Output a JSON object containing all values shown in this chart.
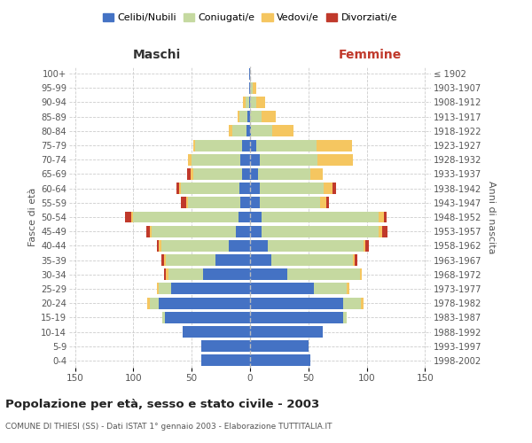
{
  "age_groups": [
    "0-4",
    "5-9",
    "10-14",
    "15-19",
    "20-24",
    "25-29",
    "30-34",
    "35-39",
    "40-44",
    "45-49",
    "50-54",
    "55-59",
    "60-64",
    "65-69",
    "70-74",
    "75-79",
    "80-84",
    "85-89",
    "90-94",
    "95-99",
    "100+"
  ],
  "birth_years": [
    "1998-2002",
    "1993-1997",
    "1988-1992",
    "1983-1987",
    "1978-1982",
    "1973-1977",
    "1968-1972",
    "1963-1967",
    "1958-1962",
    "1953-1957",
    "1948-1952",
    "1943-1947",
    "1938-1942",
    "1933-1937",
    "1928-1932",
    "1923-1927",
    "1918-1922",
    "1913-1917",
    "1908-1912",
    "1903-1907",
    "≤ 1902"
  ],
  "male": {
    "celibi": [
      42,
      42,
      58,
      73,
      78,
      68,
      40,
      30,
      18,
      12,
      10,
      8,
      9,
      7,
      8,
      7,
      3,
      2,
      1,
      1,
      1
    ],
    "coniugati": [
      0,
      0,
      0,
      2,
      8,
      10,
      30,
      42,
      58,
      72,
      90,
      45,
      50,
      42,
      42,
      40,
      12,
      7,
      3,
      0,
      0
    ],
    "vedovi": [
      0,
      0,
      0,
      0,
      2,
      2,
      2,
      2,
      2,
      2,
      2,
      2,
      2,
      2,
      3,
      2,
      3,
      2,
      2,
      0,
      0
    ],
    "divorziati": [
      0,
      0,
      0,
      0,
      0,
      0,
      2,
      2,
      2,
      3,
      5,
      4,
      2,
      3,
      0,
      0,
      0,
      0,
      0,
      0,
      0
    ]
  },
  "female": {
    "nubili": [
      52,
      50,
      62,
      80,
      80,
      55,
      32,
      18,
      15,
      10,
      10,
      8,
      8,
      7,
      8,
      5,
      1,
      0,
      0,
      0,
      0
    ],
    "coniugate": [
      0,
      0,
      0,
      3,
      15,
      28,
      62,
      70,
      82,
      100,
      100,
      52,
      55,
      45,
      50,
      52,
      18,
      10,
      5,
      2,
      0
    ],
    "vedove": [
      0,
      0,
      0,
      0,
      2,
      2,
      2,
      2,
      2,
      3,
      5,
      5,
      8,
      10,
      30,
      30,
      18,
      12,
      8,
      3,
      0
    ],
    "divorziate": [
      0,
      0,
      0,
      0,
      0,
      0,
      0,
      2,
      3,
      5,
      2,
      3,
      3,
      0,
      0,
      0,
      0,
      0,
      0,
      0,
      0
    ]
  },
  "colors": {
    "celibi": "#4472C4",
    "coniugati": "#C5D9A0",
    "vedovi": "#F5C660",
    "divorziati": "#C0392B"
  },
  "title": "Popolazione per età, sesso e stato civile - 2003",
  "subtitle": "COMUNE DI THIESI (SS) - Dati ISTAT 1° gennaio 2003 - Elaborazione TUTTITALIA.IT",
  "label_maschi": "Maschi",
  "label_femmine": "Femmine",
  "ylabel_left": "Fasce di età",
  "ylabel_right": "Anni di nascita",
  "legend_labels": [
    "Celibi/Nubili",
    "Coniugati/e",
    "Vedovi/e",
    "Divorziati/e"
  ],
  "xlim": 155,
  "xticks": [
    -150,
    -100,
    -50,
    0,
    50,
    100,
    150
  ],
  "xtick_labels": [
    "150",
    "100",
    "50",
    "0",
    "50",
    "100",
    "150"
  ],
  "background_color": "#ffffff",
  "grid_color": "#cccccc"
}
